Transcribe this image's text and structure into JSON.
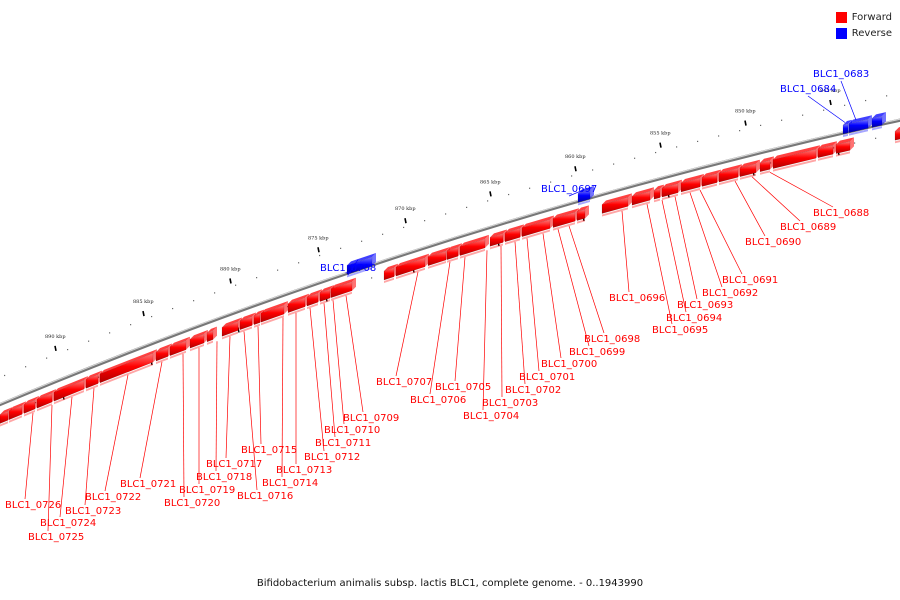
{
  "legend": {
    "forward_label": "Forward",
    "reverse_label": "Reverse",
    "forward_color": "#ff0000",
    "reverse_color": "#0000ff"
  },
  "caption": "Bifidobacterium animalis subsp. lactis BLC1, complete genome. - 0..1943990",
  "ticks": [
    "845 kbp",
    "850 kbp",
    "855 kbp",
    "860 kbp",
    "865 kbp",
    "870 kbp",
    "875 kbp",
    "880 kbp",
    "885 kbp",
    "890 kbp"
  ],
  "genes_reverse": [
    "BLC1_0683",
    "BLC1_0684",
    "BLC1_0697",
    "BLC1_0708"
  ],
  "genes_forward": [
    "BLC1_0688",
    "BLC1_0689",
    "BLC1_0690",
    "BLC1_0691",
    "BLC1_0692",
    "BLC1_0693",
    "BLC1_0694",
    "BLC1_0695",
    "BLC1_0696",
    "BLC1_0698",
    "BLC1_0699",
    "BLC1_0700",
    "BLC1_0701",
    "BLC1_0702",
    "BLC1_0703",
    "BLC1_0704",
    "BLC1_0705",
    "BLC1_0706",
    "BLC1_0707",
    "BLC1_0709",
    "BLC1_0710",
    "BLC1_0711",
    "BLC1_0712",
    "BLC1_0713",
    "BLC1_0714",
    "BLC1_0715",
    "BLC1_0716",
    "BLC1_0717",
    "BLC1_0718",
    "BLC1_0719",
    "BLC1_0720",
    "BLC1_0721",
    "BLC1_0722",
    "BLC1_0723",
    "BLC1_0724",
    "BLC1_0725",
    "BLC1_0726"
  ]
}
